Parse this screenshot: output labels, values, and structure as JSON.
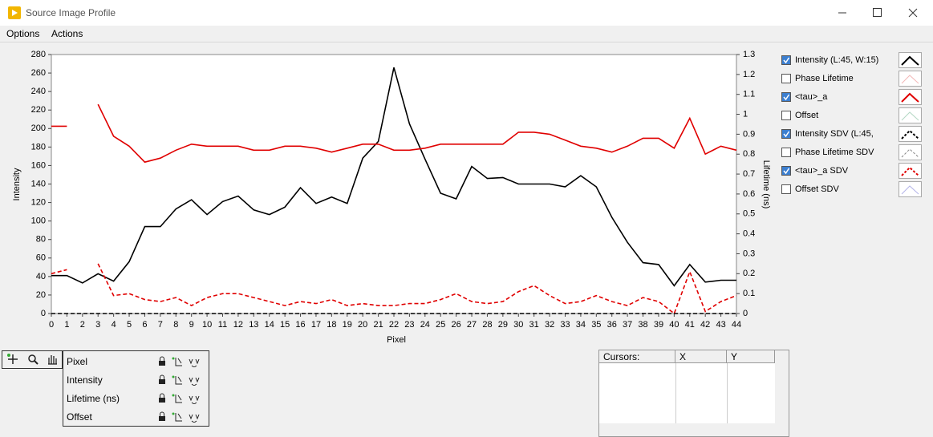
{
  "window": {
    "title": "Source Image Profile"
  },
  "menu": [
    "Options",
    "Actions"
  ],
  "chart_data": {
    "type": "line",
    "x_label": "Pixel",
    "y_label": "Intensity",
    "y2_label": "Lifetime (ns)",
    "x": [
      0,
      1,
      2,
      3,
      4,
      5,
      6,
      7,
      8,
      9,
      10,
      11,
      12,
      13,
      14,
      15,
      16,
      17,
      18,
      19,
      20,
      21,
      22,
      23,
      24,
      25,
      26,
      27,
      28,
      29,
      30,
      31,
      32,
      33,
      34,
      35,
      36,
      37,
      38,
      39,
      40,
      41,
      42,
      43,
      44
    ],
    "xlim": [
      0,
      44
    ],
    "xticks": [
      0,
      1,
      2,
      3,
      4,
      5,
      6,
      7,
      8,
      9,
      10,
      11,
      12,
      13,
      14,
      15,
      16,
      17,
      18,
      19,
      20,
      21,
      22,
      23,
      24,
      25,
      26,
      27,
      28,
      29,
      30,
      31,
      32,
      33,
      34,
      35,
      36,
      37,
      38,
      39,
      40,
      41,
      42,
      43,
      44
    ],
    "ylim": [
      0,
      280
    ],
    "yticks": [
      0,
      20,
      40,
      60,
      80,
      100,
      120,
      140,
      160,
      180,
      200,
      220,
      240,
      260,
      280
    ],
    "y2lim": [
      0,
      1.3
    ],
    "y2ticks": [
      0,
      0.1,
      0.2,
      0.3,
      0.4,
      0.5,
      0.6,
      0.7,
      0.8,
      0.9,
      1,
      1.1,
      1.2,
      1.3
    ],
    "series": [
      {
        "name": "Intensity (L:45, W:15)",
        "color": "#000000",
        "visible": true,
        "line_style": "solid",
        "values": [
          41,
          41,
          33,
          43,
          35,
          56,
          94,
          94,
          113,
          123,
          107,
          121,
          127,
          112,
          107,
          115,
          136,
          119,
          126,
          119,
          168,
          186,
          266,
          205,
          167,
          130,
          124,
          159,
          146,
          147,
          140,
          140,
          140,
          137,
          149,
          137,
          104,
          77,
          55,
          53,
          30,
          53,
          34,
          36,
          36
        ]
      },
      {
        "name": "Phase Lifetime",
        "color": "#f2b8b8",
        "visible": false,
        "line_style": "solid"
      },
      {
        "name": "<tau>_a",
        "color": "#e00000",
        "visible": true,
        "line_style": "solid",
        "axis": "y2",
        "values": [
          0.94,
          0.94,
          null,
          1.05,
          0.89,
          0.84,
          0.76,
          0.78,
          0.82,
          0.85,
          0.84,
          0.84,
          0.84,
          0.82,
          0.82,
          0.84,
          0.84,
          0.83,
          0.81,
          0.83,
          0.85,
          0.85,
          0.82,
          0.82,
          0.83,
          0.85,
          0.85,
          0.85,
          0.85,
          0.85,
          0.91,
          0.91,
          0.9,
          0.87,
          0.84,
          0.83,
          0.81,
          0.84,
          0.88,
          0.88,
          0.83,
          0.98,
          0.8,
          0.84,
          0.82
        ]
      },
      {
        "name": "Offset",
        "color": "#b4d8c4",
        "visible": false,
        "line_style": "solid"
      },
      {
        "name": "Intensity SDV  (L:45,",
        "color": "#000000",
        "visible": true,
        "line_style": "dashed",
        "values": [
          0,
          0,
          0,
          0,
          0,
          0,
          0,
          0,
          0,
          0,
          0,
          0,
          0,
          0,
          0,
          0,
          0,
          0,
          0,
          0,
          0,
          0,
          0,
          0,
          0,
          0,
          0,
          0,
          0,
          0,
          0,
          0,
          0,
          0,
          0,
          0,
          0,
          0,
          0,
          0,
          0,
          0,
          0,
          0,
          0
        ]
      },
      {
        "name": "Phase Lifetime SDV",
        "color": "#888888",
        "visible": false,
        "line_style": "dashed"
      },
      {
        "name": "<tau>_a SDV",
        "color": "#e00000",
        "visible": true,
        "line_style": "dashed",
        "axis": "y2",
        "values": [
          0.2,
          0.22,
          null,
          0.25,
          0.09,
          0.1,
          0.07,
          0.06,
          0.08,
          0.04,
          0.08,
          0.1,
          0.1,
          0.08,
          0.06,
          0.04,
          0.06,
          0.05,
          0.07,
          0.04,
          0.05,
          0.04,
          0.04,
          0.05,
          0.05,
          0.07,
          0.1,
          0.06,
          0.05,
          0.06,
          0.11,
          0.14,
          0.09,
          0.05,
          0.06,
          0.09,
          0.06,
          0.04,
          0.08,
          0.06,
          0,
          0.21,
          0.01,
          0.06,
          0.09
        ]
      },
      {
        "name": "Offset SDV",
        "color": "#b4b4e8",
        "visible": false,
        "line_style": "solid"
      }
    ]
  },
  "scale_legend": [
    "Pixel",
    "Intensity",
    "Lifetime (ns)",
    "Offset"
  ],
  "cursors": {
    "columns": [
      "Cursors:",
      "X",
      "Y"
    ]
  }
}
